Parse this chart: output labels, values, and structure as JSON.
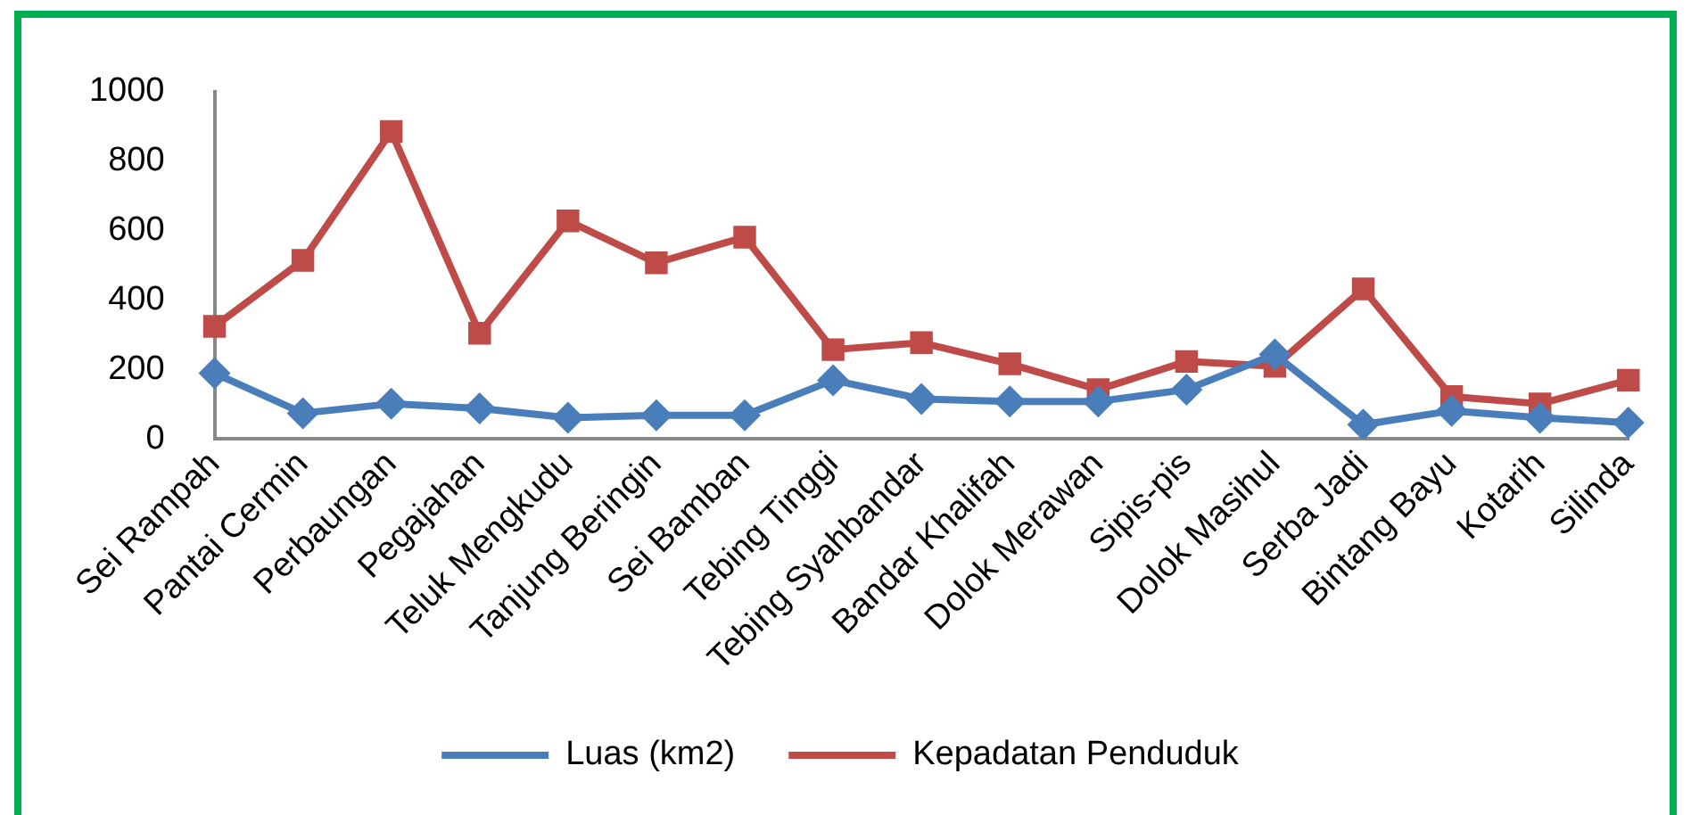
{
  "chart_data": {
    "type": "line",
    "categories": [
      "Sei Rampah",
      "Pantai Cermin",
      "Perbaungan",
      "Pegajahan",
      "Teluk Mengkudu",
      "Tanjung Beringin",
      "Sei Bamban",
      "Tebing Tinggi",
      "Tebing Syahbandar",
      "Bandar Khalifah",
      "Dolok Merawan",
      "Sipis-pis",
      "Dolok Masihul",
      "Serba Jadi",
      "Bintang Bayu",
      "Kotarih",
      "Silinda"
    ],
    "series": [
      {
        "name": "Luas (km2)",
        "color": "#4a7ebb",
        "marker": "diamond",
        "values": [
          189,
          74,
          101,
          88,
          61,
          68,
          68,
          169,
          115,
          108,
          108,
          142,
          243,
          41,
          81,
          61,
          47
        ]
      },
      {
        "name": "Kepadatan Penduduk",
        "color": "#be4b48",
        "marker": "square",
        "values": [
          324,
          514,
          885,
          304,
          628,
          507,
          581,
          257,
          277,
          216,
          142,
          223,
          209,
          432,
          122,
          101,
          169
        ]
      }
    ],
    "ylim": [
      0,
      1000
    ],
    "yticks": [
      0,
      200,
      400,
      600,
      800,
      1000
    ],
    "grid": false,
    "legend": "bottom"
  }
}
